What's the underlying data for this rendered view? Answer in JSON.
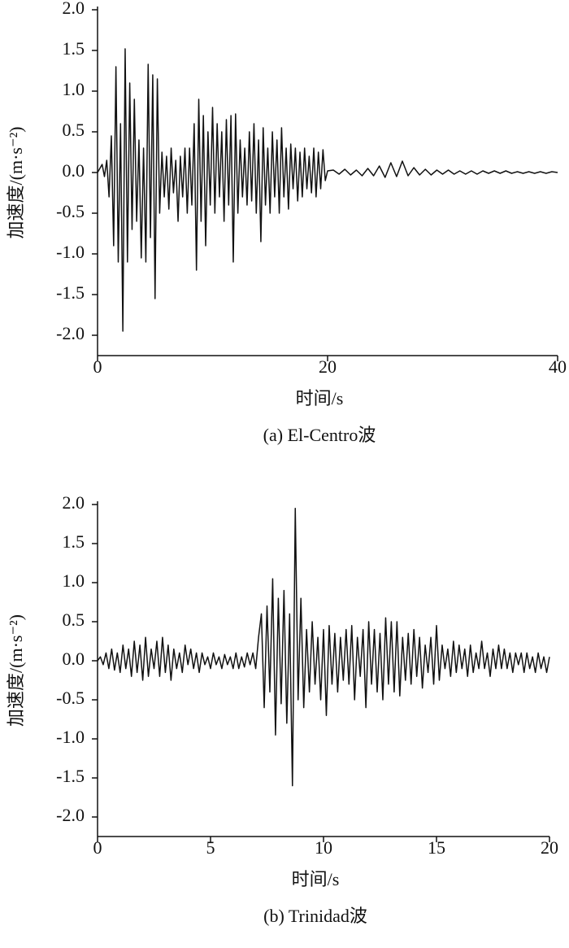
{
  "chart_data": [
    {
      "type": "line",
      "title": "(a) El-Centro波",
      "xlabel": "时间/s",
      "ylabel": "加速度/(m·s⁻²)",
      "color": "#111111",
      "xlim": [
        0,
        40
      ],
      "xticks": [
        0,
        20,
        40
      ],
      "ylim": [
        -2.25,
        2.0
      ],
      "yticks": [
        {
          "value": 2,
          "label": "2.0"
        },
        1.5,
        {
          "value": 1,
          "label": "1.0"
        },
        0.5,
        {
          "value": 0,
          "label": "0.0"
        },
        -0.5,
        {
          "value": -1,
          "label": "-1.0"
        },
        -1.5,
        {
          "value": -2,
          "label": "-2.0"
        }
      ],
      "x": [
        0,
        0.2,
        0.4,
        0.6,
        0.8,
        1,
        1.2,
        1.4,
        1.6,
        1.8,
        2,
        2.2,
        2.4,
        2.6,
        2.8,
        3,
        3.2,
        3.4,
        3.6,
        3.8,
        4,
        4.2,
        4.4,
        4.6,
        4.8,
        5,
        5.2,
        5.4,
        5.6,
        5.8,
        6,
        6.2,
        6.4,
        6.6,
        6.8,
        7,
        7.2,
        7.4,
        7.6,
        7.8,
        8,
        8.2,
        8.4,
        8.6,
        8.8,
        9,
        9.2,
        9.4,
        9.6,
        9.8,
        10,
        10.2,
        10.4,
        10.6,
        10.8,
        11,
        11.2,
        11.4,
        11.6,
        11.8,
        12,
        12.2,
        12.4,
        12.6,
        12.8,
        13,
        13.2,
        13.4,
        13.6,
        13.8,
        14,
        14.2,
        14.4,
        14.6,
        14.8,
        15,
        15.2,
        15.4,
        15.6,
        15.8,
        16,
        16.2,
        16.4,
        16.6,
        16.8,
        17,
        17.2,
        17.4,
        17.6,
        17.8,
        18,
        18.2,
        18.4,
        18.6,
        18.8,
        19,
        19.2,
        19.4,
        19.6,
        19.8,
        20,
        20.5,
        21,
        21.5,
        22,
        22.5,
        23,
        23.5,
        24,
        24.5,
        25,
        25.5,
        26,
        26.5,
        27,
        27.5,
        28,
        28.5,
        29,
        29.5,
        30,
        30.5,
        31,
        31.5,
        32,
        32.5,
        33,
        33.5,
        34,
        34.5,
        35,
        35.5,
        36,
        36.5,
        37,
        37.5,
        38,
        38.5,
        39,
        39.5,
        40
      ],
      "values": [
        0,
        0.05,
        0.1,
        -0.05,
        0.15,
        -0.3,
        0.45,
        -0.9,
        1.3,
        -1.1,
        0.6,
        -1.95,
        1.52,
        -1.1,
        1.1,
        -0.7,
        0.9,
        -0.6,
        0.4,
        -1.05,
        0.3,
        -1.1,
        1.33,
        -0.8,
        1.2,
        -1.55,
        1.15,
        -0.5,
        0.25,
        -0.3,
        0.2,
        -0.45,
        0.3,
        -0.25,
        0.15,
        -0.6,
        0.2,
        -0.3,
        0.3,
        -0.5,
        0.3,
        -0.4,
        0.6,
        -1.2,
        0.9,
        -0.6,
        0.7,
        -0.9,
        0.5,
        -0.4,
        0.8,
        -0.5,
        0.6,
        -0.3,
        0.5,
        -0.6,
        0.65,
        -0.4,
        0.7,
        -1.1,
        0.72,
        -0.5,
        0.4,
        -0.3,
        0.3,
        -0.4,
        0.5,
        -0.35,
        0.6,
        -0.5,
        0.4,
        -0.85,
        0.55,
        -0.4,
        0.3,
        -0.5,
        0.5,
        -0.3,
        0.4,
        -0.5,
        0.55,
        -0.3,
        0.3,
        -0.45,
        0.35,
        -0.2,
        0.3,
        -0.35,
        0.25,
        -0.3,
        0.3,
        -0.2,
        0.2,
        -0.25,
        0.3,
        -0.3,
        0.25,
        -0.2,
        0.28,
        -0.1,
        0.02,
        0.03,
        -0.02,
        0.04,
        -0.03,
        0.03,
        -0.04,
        0.05,
        -0.04,
        0.08,
        -0.06,
        0.12,
        -0.05,
        0.14,
        -0.04,
        0.06,
        -0.03,
        0.04,
        -0.03,
        0.03,
        -0.02,
        0.03,
        -0.02,
        0.02,
        -0.02,
        0.02,
        -0.02,
        0.02,
        -0.01,
        0.02,
        -0.01,
        0.02,
        -0.01,
        0.01,
        -0.01,
        0.01,
        -0.01,
        0.01,
        -0.01,
        0.01,
        0
      ]
    },
    {
      "type": "line",
      "title": "(b) Trinidad波",
      "xlabel": "时间/s",
      "ylabel": "加速度/(m·s⁻²)",
      "color": "#111111",
      "xlim": [
        0,
        20
      ],
      "xticks": [
        0,
        5,
        10,
        15,
        20
      ],
      "ylim": [
        -2.25,
        2.0
      ],
      "yticks": [
        {
          "value": 2,
          "label": "2.0"
        },
        1.5,
        {
          "value": 1,
          "label": "1.0"
        },
        0.5,
        {
          "value": 0,
          "label": "0.0"
        },
        -0.5,
        {
          "value": -1,
          "label": "-1.0"
        },
        -1.5,
        {
          "value": -2,
          "label": "-2.0"
        }
      ],
      "x": [
        0,
        0.125,
        0.25,
        0.375,
        0.5,
        0.625,
        0.75,
        0.875,
        1,
        1.125,
        1.25,
        1.375,
        1.5,
        1.625,
        1.75,
        1.875,
        2,
        2.125,
        2.25,
        2.375,
        2.5,
        2.625,
        2.75,
        2.875,
        3,
        3.125,
        3.25,
        3.375,
        3.5,
        3.625,
        3.75,
        3.875,
        4,
        4.125,
        4.25,
        4.375,
        4.5,
        4.625,
        4.75,
        4.875,
        5,
        5.125,
        5.25,
        5.375,
        5.5,
        5.625,
        5.75,
        5.875,
        6,
        6.125,
        6.25,
        6.375,
        6.5,
        6.625,
        6.75,
        6.875,
        7,
        7.125,
        7.25,
        7.375,
        7.5,
        7.625,
        7.75,
        7.875,
        8,
        8.125,
        8.25,
        8.375,
        8.5,
        8.625,
        8.75,
        8.875,
        9,
        9.125,
        9.25,
        9.375,
        9.5,
        9.625,
        9.75,
        9.875,
        10,
        10.125,
        10.25,
        10.375,
        10.5,
        10.625,
        10.75,
        10.875,
        11,
        11.125,
        11.25,
        11.375,
        11.5,
        11.625,
        11.75,
        11.875,
        12,
        12.125,
        12.25,
        12.375,
        12.5,
        12.625,
        12.75,
        12.875,
        13,
        13.125,
        13.25,
        13.375,
        13.5,
        13.625,
        13.75,
        13.875,
        14,
        14.125,
        14.25,
        14.375,
        14.5,
        14.625,
        14.75,
        14.875,
        15,
        15.125,
        15.25,
        15.375,
        15.5,
        15.625,
        15.75,
        15.875,
        16,
        16.125,
        16.25,
        16.375,
        16.5,
        16.625,
        16.75,
        16.875,
        17,
        17.125,
        17.25,
        17.375,
        17.5,
        17.625,
        17.75,
        17.875,
        18,
        18.125,
        18.25,
        18.375,
        18.5,
        18.625,
        18.75,
        18.875,
        19,
        19.125,
        19.25,
        19.375,
        19.5,
        19.625,
        19.75,
        19.875,
        20
      ],
      "values": [
        0,
        0.05,
        -0.05,
        0.1,
        -0.1,
        0.15,
        -0.12,
        0.1,
        -0.15,
        0.2,
        -0.1,
        0.15,
        -0.2,
        0.25,
        -0.15,
        0.2,
        -0.25,
        0.3,
        -0.2,
        0.15,
        -0.1,
        0.25,
        -0.2,
        0.3,
        -0.15,
        0.2,
        -0.25,
        0.15,
        -0.1,
        0.1,
        -0.15,
        0.2,
        -0.05,
        0.15,
        -0.1,
        0.1,
        -0.15,
        0.1,
        -0.05,
        0.05,
        -0.1,
        0.1,
        -0.05,
        0.05,
        -0.1,
        0.08,
        -0.05,
        0.05,
        -0.1,
        0.1,
        -0.1,
        0.05,
        -0.08,
        0.1,
        -0.05,
        0.1,
        -0.1,
        0.3,
        0.6,
        -0.6,
        0.7,
        -0.4,
        1.05,
        -0.95,
        0.8,
        -0.55,
        0.9,
        -0.8,
        0.6,
        -1.6,
        1.95,
        -0.5,
        0.8,
        -0.6,
        0.4,
        -0.4,
        0.5,
        -0.3,
        0.3,
        -0.5,
        0.4,
        -0.7,
        0.45,
        -0.3,
        0.35,
        -0.4,
        0.3,
        -0.25,
        0.4,
        -0.3,
        0.45,
        -0.5,
        0.3,
        -0.2,
        0.4,
        -0.6,
        0.5,
        -0.3,
        0.4,
        -0.4,
        0.35,
        -0.5,
        0.55,
        -0.3,
        0.5,
        -0.4,
        0.5,
        -0.45,
        0.3,
        -0.25,
        0.35,
        -0.3,
        0.4,
        -0.2,
        0.3,
        -0.35,
        0.2,
        -0.15,
        0.3,
        -0.3,
        0.45,
        -0.25,
        0.2,
        -0.1,
        0.15,
        -0.2,
        0.25,
        -0.15,
        0.2,
        -0.1,
        0.15,
        -0.2,
        0.2,
        -0.15,
        0.1,
        -0.1,
        0.25,
        -0.1,
        0.1,
        -0.2,
        0.15,
        -0.1,
        0.2,
        -0.1,
        0.15,
        -0.1,
        0.1,
        -0.15,
        0.1,
        -0.05,
        0.1,
        -0.15,
        0.1,
        -0.1,
        0.05,
        -0.15,
        0.1,
        -0.1,
        0.05,
        -0.15,
        0.05
      ]
    }
  ]
}
